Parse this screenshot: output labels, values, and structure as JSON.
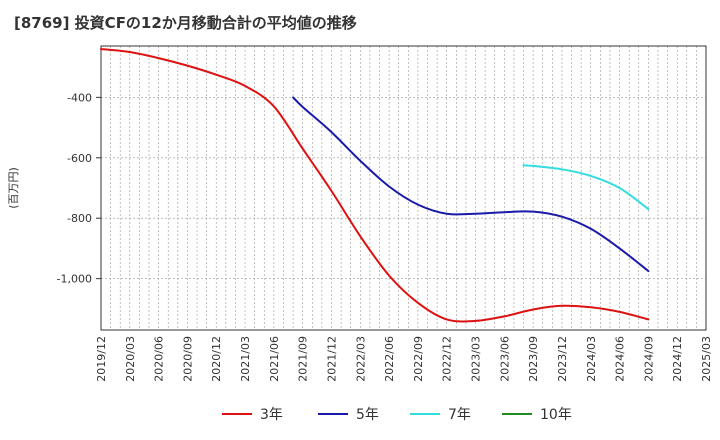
{
  "chart_data": {
    "type": "line",
    "title": "[8769]  投資CFの12か月移動合計の平均値の推移",
    "ylabel": "(百万円)",
    "xlabel": "",
    "x_tick_labels": [
      "2019/12",
      "2020/03",
      "2020/06",
      "2020/09",
      "2020/12",
      "2021/03",
      "2021/06",
      "2021/09",
      "2021/12",
      "2022/03",
      "2022/06",
      "2022/09",
      "2022/12",
      "2023/03",
      "2023/06",
      "2023/09",
      "2023/12",
      "2024/03",
      "2024/06",
      "2024/09",
      "2024/12",
      "2025/03"
    ],
    "y_tick_labels": [
      "-400",
      "-600",
      "-800",
      "-1,000"
    ],
    "y_ticks": [
      -400,
      -600,
      -800,
      -1000
    ],
    "ylim": [
      -1170,
      -230
    ],
    "grid": true,
    "legend_position": "bottom",
    "series": [
      {
        "name": "3年",
        "color": "#dd1111",
        "x": [
          "2019/12",
          "2020/03",
          "2020/06",
          "2020/09",
          "2020/12",
          "2021/03",
          "2021/06",
          "2021/09",
          "2021/12",
          "2022/03",
          "2022/06",
          "2022/09",
          "2022/12",
          "2023/03",
          "2023/06",
          "2023/09",
          "2023/12",
          "2024/03",
          "2024/06",
          "2024/09"
        ],
        "values": [
          -240,
          -250,
          -270,
          -295,
          -325,
          -362,
          -430,
          -570,
          -710,
          -860,
          -990,
          -1080,
          -1135,
          -1140,
          -1125,
          -1102,
          -1090,
          -1095,
          -1110,
          -1135
        ]
      },
      {
        "name": "5年",
        "color": "#1a1aaa",
        "x": [
          "2021/08",
          "2021/09",
          "2021/12",
          "2022/03",
          "2022/06",
          "2022/09",
          "2022/12",
          "2023/03",
          "2023/06",
          "2023/09",
          "2023/12",
          "2024/03",
          "2024/06",
          "2024/09"
        ],
        "values": [
          -400,
          -432,
          -515,
          -610,
          -695,
          -755,
          -785,
          -785,
          -780,
          -778,
          -795,
          -835,
          -900,
          -975
        ]
      },
      {
        "name": "7年",
        "color": "#33dddd",
        "x": [
          "2023/08",
          "2023/09",
          "2023/12",
          "2024/03",
          "2024/06",
          "2024/09"
        ],
        "values": [
          -625,
          -627,
          -638,
          -660,
          -700,
          -770
        ]
      },
      {
        "name": "10年",
        "color": "#228b22",
        "x": [],
        "values": []
      }
    ]
  }
}
